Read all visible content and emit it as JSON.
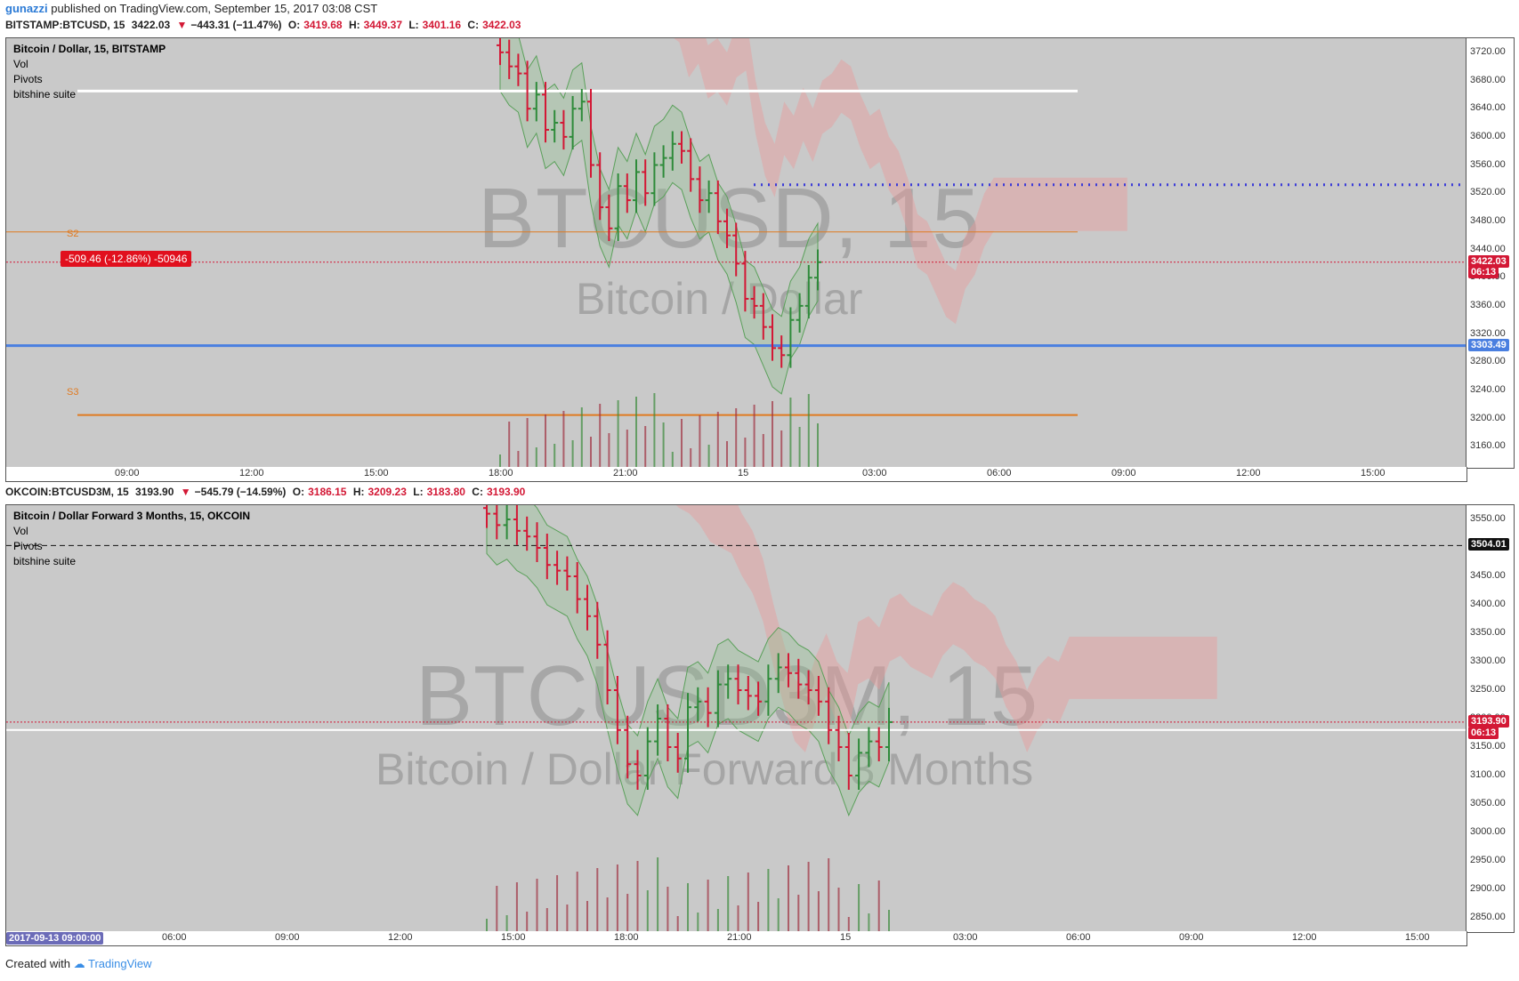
{
  "header": {
    "author": "gunazzi",
    "published_text": "published on TradingView.com, September 15, 2017 03:08 CST"
  },
  "colors": {
    "up": "#2e8b3a",
    "down": "#d31835",
    "pivot": "#e07a20",
    "blue_line": "#4a7fe0",
    "cloud": "#e89c9c",
    "band": "#8fbf8f"
  },
  "top": {
    "legend": {
      "symbol": "BITSTAMP:BTCUSD, 15",
      "last": "3422.03",
      "change": "−443.31 (−11.47%)",
      "o_label": "O:",
      "o": "3419.68",
      "h_label": "H:",
      "h": "3449.37",
      "l_label": "L:",
      "l": "3401.16",
      "c_label": "C:",
      "c": "3422.03"
    },
    "title": "Bitcoin / Dollar, 15, BITSTAMP",
    "indicators": [
      "Vol",
      "Pivots",
      "bitshine suite"
    ],
    "watermark": "BTCUSD, 15",
    "watermark_sub": "Bitcoin / Dollar",
    "pivot_labels": [
      "S2",
      "S3"
    ],
    "measure_label": "-509.46 (-12.86%) -50946",
    "price_tags": {
      "last": "3422.03",
      "countdown": "06:13",
      "line": "3303.49"
    },
    "y_ticks": [
      "3720.00",
      "3680.00",
      "3640.00",
      "3600.00",
      "3560.00",
      "3520.00",
      "3480.00",
      "3440.00",
      "3400.00",
      "3360.00",
      "3320.00",
      "3280.00",
      "3240.00",
      "3200.00",
      "3160.00"
    ],
    "x_ticks": [
      "09:00",
      "12:00",
      "15:00",
      "18:00",
      "21:00",
      "15",
      "03:00",
      "06:00",
      "09:00",
      "12:00",
      "15:00"
    ]
  },
  "bottom": {
    "legend": {
      "symbol": "OKCOIN:BTCUSD3M, 15",
      "last": "3193.90",
      "change": "−545.79 (−14.59%)",
      "o_label": "O:",
      "o": "3186.15",
      "h_label": "H:",
      "h": "3209.23",
      "l_label": "L:",
      "l": "3183.80",
      "c_label": "C:",
      "c": "3193.90"
    },
    "title": "Bitcoin / Dollar Forward 3 Months, 15, OKCOIN",
    "indicators": [
      "Vol",
      "Pivots",
      "bitshine suite"
    ],
    "watermark": "BTCUSD3M, 15",
    "watermark_sub": "Bitcoin / Dollar Forward 3 Months",
    "price_tags": {
      "last": "3193.90",
      "countdown": "06:13",
      "line": "3504.01"
    },
    "date_badge": "2017-09-13 09:00:00",
    "y_ticks": [
      "3550.00",
      "3500.00",
      "3450.00",
      "3400.00",
      "3350.00",
      "3300.00",
      "3250.00",
      "3200.00",
      "3150.00",
      "3100.00",
      "3050.00",
      "3000.00",
      "2950.00",
      "2900.00",
      "2850.00"
    ],
    "x_ticks": [
      "06:00",
      "09:00",
      "12:00",
      "15:00",
      "18:00",
      "21:00",
      "15",
      "03:00",
      "06:00",
      "09:00",
      "12:00",
      "15:00"
    ]
  },
  "footer": {
    "created_with": "Created with",
    "brand": "TradingView"
  },
  "chart_data": [
    {
      "type": "candlestick",
      "title": "Bitcoin / Dollar, 15, BITSTAMP",
      "ylim": [
        3130,
        3740
      ],
      "x_ticks": [
        "09:00",
        "12:00",
        "15:00",
        "18:00",
        "21:00",
        "15",
        "03:00",
        "06:00",
        "09:00",
        "12:00",
        "15:00"
      ],
      "close": [
        3720,
        3700,
        3690,
        3640,
        3660,
        3610,
        3620,
        3600,
        3640,
        3650,
        3560,
        3500,
        3470,
        3530,
        3510,
        3550,
        3520,
        3560,
        3570,
        3590,
        3580,
        3540,
        3510,
        3520,
        3480,
        3460,
        3420,
        3370,
        3360,
        3330,
        3300,
        3290,
        3340,
        3360,
        3400,
        3422.03
      ],
      "overlays": {
        "white_level": 3665,
        "dotted_blue_level": 3532,
        "s2_level": 3465,
        "s3_level": 3205,
        "blue_line": 3303.49,
        "last_price": 3422.03
      }
    },
    {
      "type": "candlestick",
      "title": "Bitcoin / Dollar Forward 3 Months, 15, OKCOIN",
      "ylim": [
        2825,
        3575
      ],
      "x_ticks": [
        "06:00",
        "09:00",
        "12:00",
        "15:00",
        "18:00",
        "21:00",
        "15",
        "03:00",
        "06:00",
        "09:00",
        "12:00",
        "15:00"
      ],
      "close": [
        3560,
        3540,
        3550,
        3530,
        3520,
        3500,
        3470,
        3460,
        3450,
        3410,
        3380,
        3330,
        3250,
        3180,
        3120,
        3100,
        3160,
        3200,
        3150,
        3130,
        3220,
        3230,
        3210,
        3260,
        3270,
        3250,
        3240,
        3230,
        3270,
        3290,
        3280,
        3260,
        3250,
        3230,
        3180,
        3150,
        3100,
        3140,
        3160,
        3150,
        3193.9
      ],
      "overlays": {
        "dashed_level": 3504.01,
        "white_level": 3180,
        "last_price": 3193.9
      }
    }
  ]
}
